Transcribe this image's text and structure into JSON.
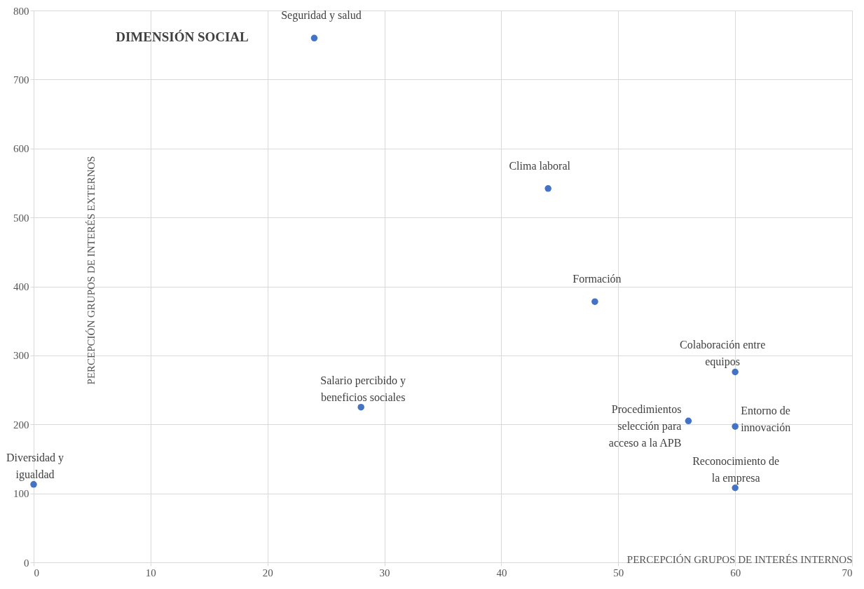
{
  "chart_data": {
    "type": "scatter",
    "title": "DIMENSIÓN SOCIAL",
    "xlabel": "PERCEPCIÓN GRUPOS DE INTERÉS INTERNOS",
    "ylabel": "PERCEPCIÓN GRUPOS DE INTERÉS EXTERNOS",
    "x": [
      24,
      44,
      48,
      60,
      28,
      56,
      60,
      60,
      0
    ],
    "series": [
      {
        "color": "#4472c4",
        "values": [
          760,
          542,
          378,
          276,
          225,
          205,
          197,
          108,
          113
        ]
      }
    ],
    "annotations": [
      {
        "text": "Seguridad y salud",
        "x": 24,
        "y": 760
      },
      {
        "text": "Clima laboral",
        "x": 44,
        "y": 542
      },
      {
        "text": "Formación",
        "x": 48,
        "y": 378
      },
      {
        "text": "Colaboración entre\nequipos",
        "x": 60,
        "y": 276
      },
      {
        "text": "Salario percibido y\nbeneficios sociales",
        "x": 28,
        "y": 225
      },
      {
        "text": "Procedimientos\nselección para\nacceso a la APB",
        "x": 56,
        "y": 205
      },
      {
        "text": "Entorno de\ninnovación",
        "x": 60,
        "y": 197
      },
      {
        "text": "Reconocimiento de\nla empresa",
        "x": 60,
        "y": 108
      },
      {
        "text": "Diversidad y\nigualdad",
        "x": 0,
        "y": 113
      }
    ],
    "xlim": [
      0,
      70
    ],
    "xticks": [
      0,
      10,
      20,
      30,
      40,
      50,
      60,
      70
    ],
    "ylim": [
      0,
      800
    ],
    "yticks": [
      0,
      100,
      200,
      300,
      400,
      500,
      600,
      700,
      800
    ],
    "grid": true,
    "marker": "circle"
  }
}
